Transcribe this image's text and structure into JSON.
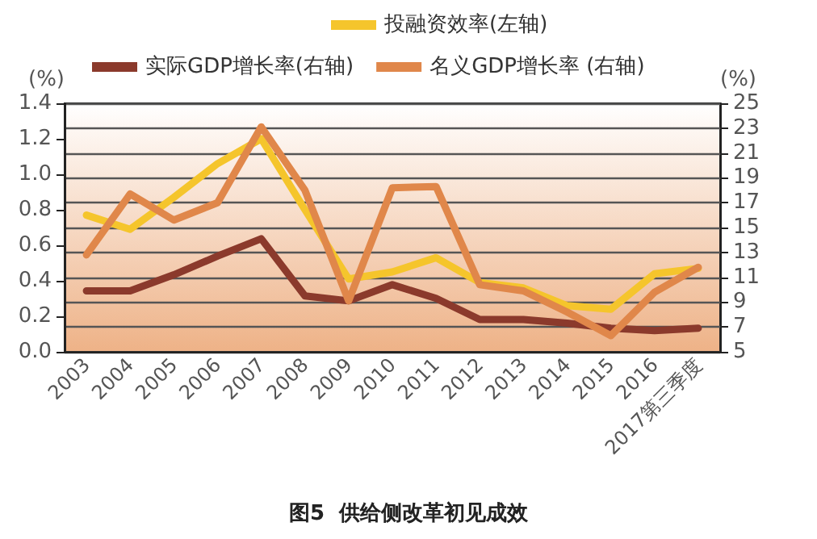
{
  "chart_data": {
    "type": "line",
    "title": "图5  供给侧改革初见成效",
    "categories": [
      "2003",
      "2004",
      "2005",
      "2006",
      "2007",
      "2008",
      "2009",
      "2010",
      "2011",
      "2012",
      "2013",
      "2014",
      "2015",
      "2016",
      "2017第三季度"
    ],
    "series": [
      {
        "name": "投融资效率(左轴)",
        "color": "#f5c52c",
        "values": [
          0.77,
          0.69,
          0.87,
          1.06,
          1.2,
          0.8,
          0.41,
          0.45,
          0.53,
          0.39,
          0.36,
          0.26,
          0.24,
          0.44,
          0.47
        ]
      },
      {
        "name": "实际GDP增长率(右轴)",
        "color": "#8b3a2c",
        "axis": "y2",
        "values": [
          9.9,
          9.9,
          11.2,
          12.7,
          14.1,
          9.5,
          9.1,
          10.4,
          9.3,
          7.6,
          7.6,
          7.3,
          6.9,
          6.7,
          6.9
        ]
      },
      {
        "name": "名义GDP增长率 (右轴)",
        "color": "#e0874a",
        "axis": "y2",
        "values": [
          12.8,
          17.7,
          15.6,
          17.0,
          23.1,
          18.0,
          9.1,
          18.2,
          18.3,
          10.4,
          9.9,
          8.2,
          6.3,
          9.8,
          11.8
        ]
      }
    ],
    "ylabel": "(%)",
    "y2label": "(%)",
    "ylim": [
      0,
      1.4
    ],
    "yticks": [
      {
        "value": 0,
        "label": "0.0"
      },
      {
        "value": 0.2,
        "label": "0.2"
      },
      {
        "value": 0.4,
        "label": "0.4"
      },
      {
        "value": 0.6,
        "label": "0.6"
      },
      {
        "value": 0.8,
        "label": "0.8"
      },
      {
        "value": 1,
        "label": "1.0"
      },
      {
        "value": 1.2,
        "label": "1.2"
      },
      {
        "value": 1.4,
        "label": "1.4"
      }
    ],
    "y2lim": [
      5,
      25
    ],
    "y2ticks": [
      5,
      7,
      9,
      11,
      13,
      15,
      17,
      19,
      21,
      23,
      25
    ],
    "grid": true,
    "legend": "top",
    "marker": "none",
    "line_style": "solid"
  }
}
